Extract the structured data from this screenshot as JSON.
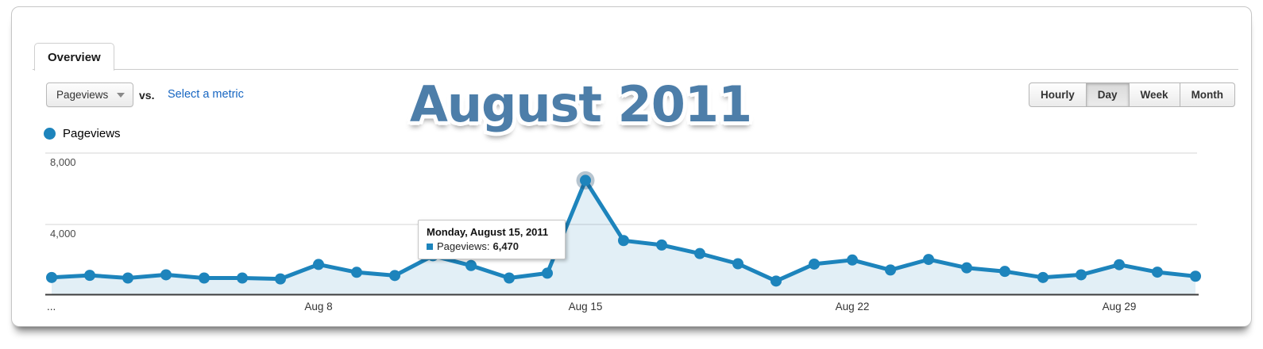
{
  "tab": {
    "label": "Overview"
  },
  "controls": {
    "metric_dropdown": {
      "label": "Pageviews"
    },
    "vs_label": "vs.",
    "select_metric_link": "Select a metric",
    "granularity_buttons": [
      {
        "label": "Hourly",
        "active": false
      },
      {
        "label": "Day",
        "active": true
      },
      {
        "label": "Week",
        "active": false
      },
      {
        "label": "Month",
        "active": false
      }
    ]
  },
  "title": "August 2011",
  "legend": {
    "label": "Pageviews",
    "color": "#1d84bc"
  },
  "tooltip": {
    "date": "Monday, August 15, 2011",
    "metric_label": "Pageviews:",
    "value": "6,470"
  },
  "colors": {
    "line": "#1d84bc",
    "area": "rgba(29,132,188,0.13)",
    "gridline": "#e4e4e4",
    "axis": "#3c3c3c",
    "halo": "rgba(15,62,98,0.30)",
    "title": "#4d7ea9",
    "link": "#1766c2"
  },
  "chart_data": {
    "type": "line",
    "title": "August 2011",
    "categories": [
      "Aug 1",
      "Aug 2",
      "Aug 3",
      "Aug 4",
      "Aug 5",
      "Aug 6",
      "Aug 7",
      "Aug 8",
      "Aug 9",
      "Aug 10",
      "Aug 11",
      "Aug 12",
      "Aug 13",
      "Aug 14",
      "Aug 15",
      "Aug 16",
      "Aug 17",
      "Aug 18",
      "Aug 19",
      "Aug 20",
      "Aug 21",
      "Aug 22",
      "Aug 23",
      "Aug 24",
      "Aug 25",
      "Aug 26",
      "Aug 27",
      "Aug 28",
      "Aug 29",
      "Aug 30",
      "Aug 31"
    ],
    "series": [
      {
        "name": "Pageviews",
        "color": "#1d84bc",
        "values": [
          1030,
          1150,
          1000,
          1180,
          1000,
          1000,
          950,
          1760,
          1320,
          1140,
          2250,
          1700,
          1000,
          1270,
          6470,
          3100,
          2850,
          2370,
          1800,
          830,
          1780,
          2010,
          1450,
          2040,
          1570,
          1370,
          1030,
          1180,
          1745,
          1330,
          1100
        ]
      }
    ],
    "y_ticks": [
      4000,
      8000
    ],
    "y_tick_labels": [
      "4,000",
      "8,000"
    ],
    "ylim": [
      0,
      8800
    ],
    "x_tick_labels": [
      "...",
      "Aug 8",
      "Aug 15",
      "Aug 22",
      "Aug 29"
    ],
    "x_tick_categories": [
      "Aug 8",
      "Aug 15",
      "Aug 22",
      "Aug 29"
    ],
    "grid": "horizontal",
    "area_fill": true,
    "legend_position": "top-left",
    "highlight_point": {
      "category": "Aug 15",
      "value": 6470
    }
  }
}
